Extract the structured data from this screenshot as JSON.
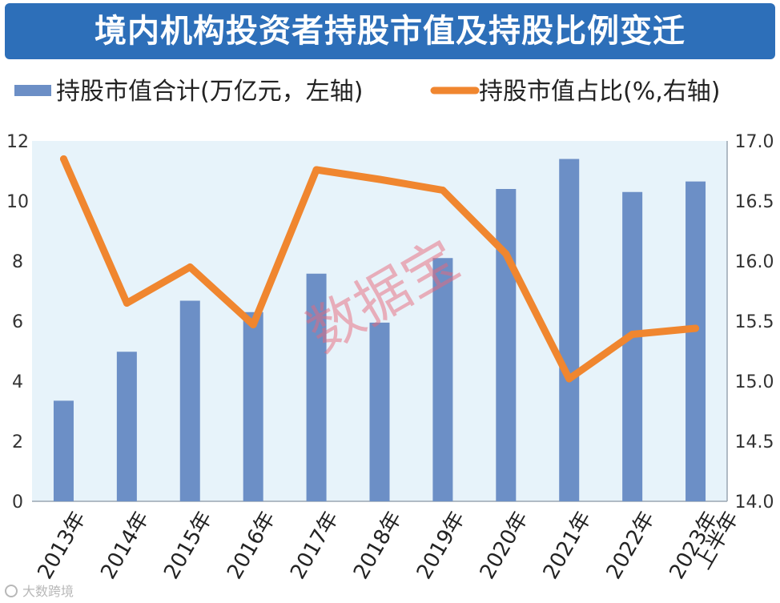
{
  "title": "境内机构投资者持股市值及持股比例变迁",
  "watermark": "数据宝",
  "source_logo_text": "大数跨境",
  "chart_data": {
    "type": "bar+line",
    "categories": [
      "2013年",
      "2014年",
      "2015年",
      "2016年",
      "2017年",
      "2018年",
      "2019年",
      "2020年",
      "2021年",
      "2022年",
      "2023年上半年"
    ],
    "category_lines": [
      [
        "2013年"
      ],
      [
        "2014年"
      ],
      [
        "2015年"
      ],
      [
        "2016年"
      ],
      [
        "2017年"
      ],
      [
        "2018年"
      ],
      [
        "2019年"
      ],
      [
        "2020年"
      ],
      [
        "2021年"
      ],
      [
        "2022年"
      ],
      [
        "2023年",
        "上半年"
      ]
    ],
    "series": [
      {
        "name": "持股市值合计(万亿元，左轴)",
        "type": "bar",
        "axis": "left",
        "color": "#6c8fc6",
        "values": [
          3.35,
          4.98,
          6.68,
          6.3,
          7.58,
          5.95,
          8.1,
          10.4,
          11.4,
          10.3,
          10.65
        ]
      },
      {
        "name": "持股市值占比(%,右轴)",
        "type": "line",
        "axis": "right",
        "color": "#f0862f",
        "values": [
          16.85,
          15.65,
          15.95,
          15.47,
          16.76,
          16.68,
          16.59,
          16.06,
          15.02,
          15.39,
          15.44
        ]
      }
    ],
    "y_left": {
      "min": 0,
      "max": 12,
      "ticks": [
        "0",
        "2",
        "4",
        "6",
        "8",
        "10",
        "12"
      ]
    },
    "y_right": {
      "min": 14,
      "max": 17,
      "ticks": [
        "14.0",
        "14.5",
        "15.0",
        "15.5",
        "16.0",
        "16.5",
        "17.0"
      ]
    },
    "legend_position": "top",
    "grid": false,
    "background": "#e7f3fa"
  }
}
